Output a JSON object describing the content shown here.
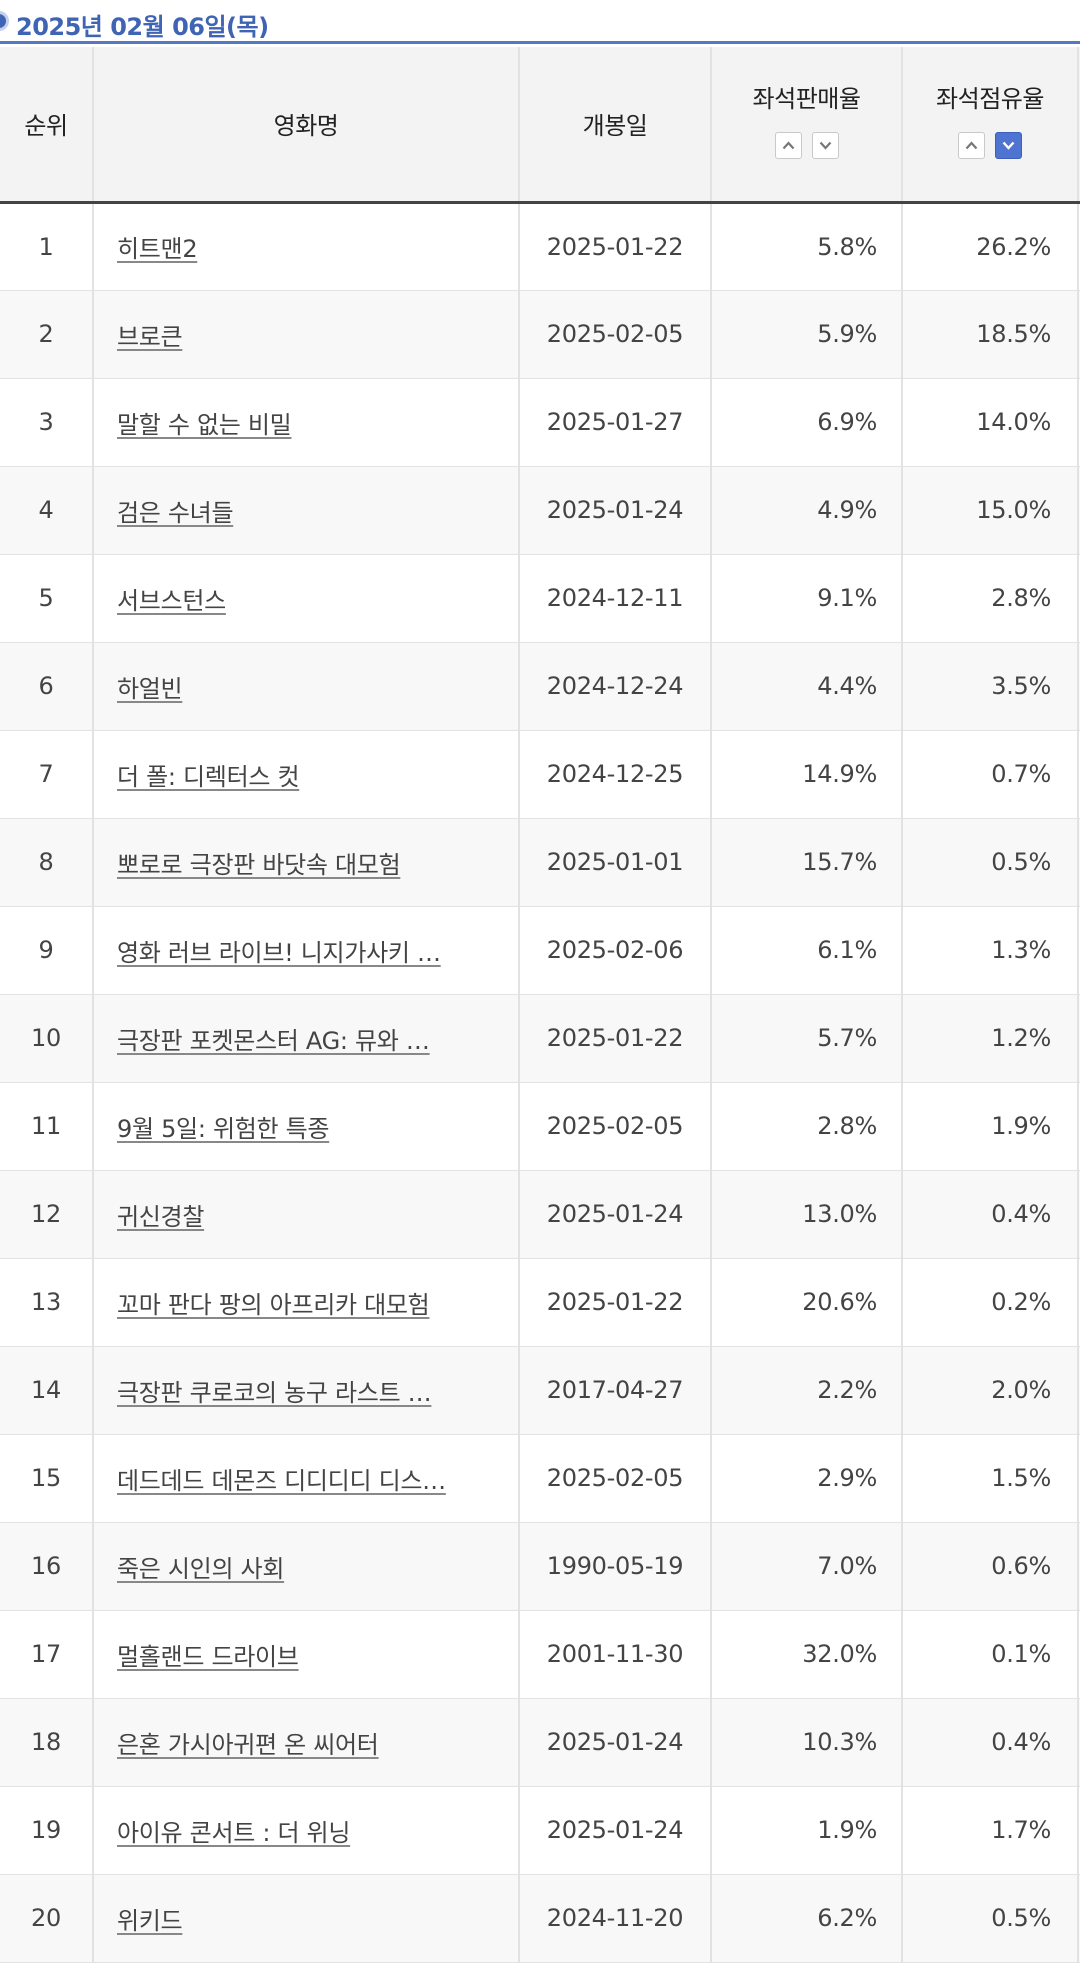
{
  "date_header": "2025년 02월 06일(목)",
  "columns": {
    "rank": "순위",
    "title": "영화명",
    "open_date": "개봉일",
    "seat_sales_rate": "좌석판매율",
    "seat_share_rate": "좌석점유율"
  },
  "sort_state": {
    "seat_sales_rate": "none",
    "seat_share_rate": "descending"
  },
  "colors": {
    "accent": "#3f64b3",
    "sort_active": "#4f73d1"
  },
  "rows": [
    {
      "rank": "1",
      "title": "히트맨2",
      "open_date": "2025-01-22",
      "sales": "5.8%",
      "share": "26.2%"
    },
    {
      "rank": "2",
      "title": "브로큰",
      "open_date": "2025-02-05",
      "sales": "5.9%",
      "share": "18.5%"
    },
    {
      "rank": "3",
      "title": "말할 수 없는 비밀",
      "open_date": "2025-01-27",
      "sales": "6.9%",
      "share": "14.0%"
    },
    {
      "rank": "4",
      "title": "검은 수녀들",
      "open_date": "2025-01-24",
      "sales": "4.9%",
      "share": "15.0%"
    },
    {
      "rank": "5",
      "title": "서브스턴스",
      "open_date": "2024-12-11",
      "sales": "9.1%",
      "share": "2.8%"
    },
    {
      "rank": "6",
      "title": "하얼빈",
      "open_date": "2024-12-24",
      "sales": "4.4%",
      "share": "3.5%"
    },
    {
      "rank": "7",
      "title": "더 폴: 디렉터스 컷",
      "open_date": "2024-12-25",
      "sales": "14.9%",
      "share": "0.7%"
    },
    {
      "rank": "8",
      "title": "뽀로로 극장판 바닷속 대모험",
      "open_date": "2025-01-01",
      "sales": "15.7%",
      "share": "0.5%"
    },
    {
      "rank": "9",
      "title": "영화 러브 라이브! 니지가사키 …",
      "open_date": "2025-02-06",
      "sales": "6.1%",
      "share": "1.3%"
    },
    {
      "rank": "10",
      "title": "극장판 포켓몬스터 AG: 뮤와 …",
      "open_date": "2025-01-22",
      "sales": "5.7%",
      "share": "1.2%"
    },
    {
      "rank": "11",
      "title": "9월 5일: 위험한 특종",
      "open_date": "2025-02-05",
      "sales": "2.8%",
      "share": "1.9%"
    },
    {
      "rank": "12",
      "title": "귀신경찰",
      "open_date": "2025-01-24",
      "sales": "13.0%",
      "share": "0.4%"
    },
    {
      "rank": "13",
      "title": "꼬마 판다 팡의 아프리카 대모험",
      "open_date": "2025-01-22",
      "sales": "20.6%",
      "share": "0.2%"
    },
    {
      "rank": "14",
      "title": "극장판 쿠로코의 농구 라스트 …",
      "open_date": "2017-04-27",
      "sales": "2.2%",
      "share": "2.0%"
    },
    {
      "rank": "15",
      "title": "데드데드 데몬즈 디디디디 디스…",
      "open_date": "2025-02-05",
      "sales": "2.9%",
      "share": "1.5%"
    },
    {
      "rank": "16",
      "title": "죽은 시인의 사회",
      "open_date": "1990-05-19",
      "sales": "7.0%",
      "share": "0.6%"
    },
    {
      "rank": "17",
      "title": "멀홀랜드 드라이브",
      "open_date": "2001-11-30",
      "sales": "32.0%",
      "share": "0.1%"
    },
    {
      "rank": "18",
      "title": "은혼 가시아귀편 온 씨어터",
      "open_date": "2025-01-24",
      "sales": "10.3%",
      "share": "0.4%"
    },
    {
      "rank": "19",
      "title": "아이유 콘서트 : 더 위닝",
      "open_date": "2025-01-24",
      "sales": "1.9%",
      "share": "1.7%"
    },
    {
      "rank": "20",
      "title": "위키드",
      "open_date": "2024-11-20",
      "sales": "6.2%",
      "share": "0.5%"
    }
  ]
}
